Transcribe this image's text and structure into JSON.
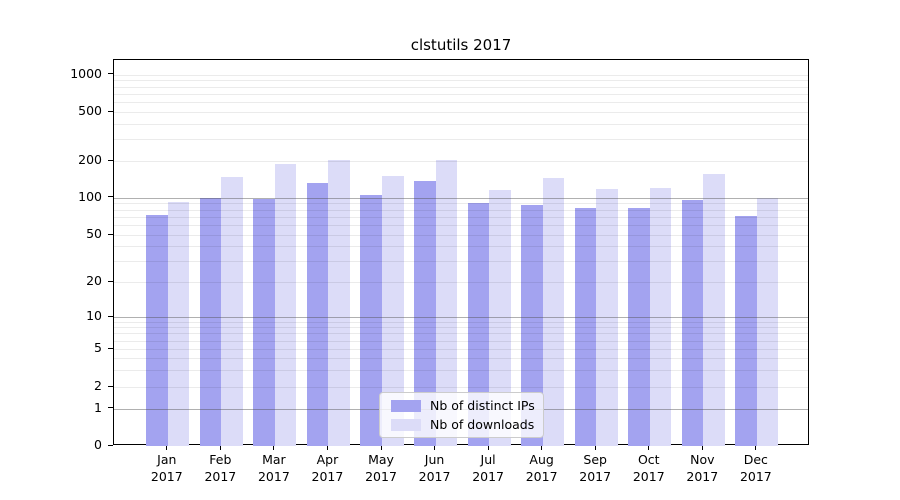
{
  "chart_data": {
    "type": "bar",
    "title": "clstutils 2017",
    "categories": [
      "Jan 2017",
      "Feb 2017",
      "Mar 2017",
      "Apr 2017",
      "May 2017",
      "Jun 2017",
      "Jul 2017",
      "Aug 2017",
      "Sep 2017",
      "Oct 2017",
      "Nov 2017",
      "Dec 2017"
    ],
    "series": [
      {
        "name": "Nb of distinct IPs",
        "color": "#a3a3f0",
        "values": [
          72,
          99,
          97,
          133,
          105,
          137,
          91,
          87,
          83,
          82,
          95,
          71
        ]
      },
      {
        "name": "Nb of downloads",
        "color": "#dcdcf8",
        "values": [
          93,
          149,
          188,
          205,
          150,
          203,
          116,
          145,
          117,
          119,
          155,
          100
        ]
      }
    ],
    "yscale": "symlog",
    "yticks": [
      0,
      1,
      2,
      5,
      10,
      20,
      50,
      100,
      200,
      500,
      1000
    ],
    "ylim": [
      0,
      1000
    ],
    "grid": true,
    "legend_position": "lower center"
  }
}
